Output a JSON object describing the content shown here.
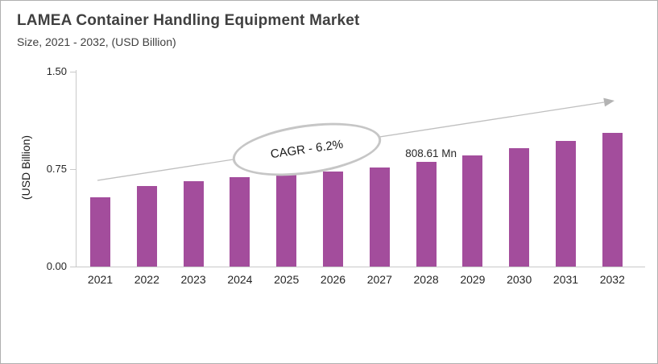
{
  "header": {
    "title": "LAMEA Container Handling Equipment Market",
    "subtitle": "Size, 2021 - 2032, (USD Billion)"
  },
  "chart_data": {
    "type": "bar",
    "title": "LAMEA Container Handling Equipment Market",
    "subtitle": "Size, 2021 - 2032, (USD Billion)",
    "categories": [
      "2021",
      "2022",
      "2023",
      "2024",
      "2025",
      "2026",
      "2027",
      "2028",
      "2029",
      "2030",
      "2031",
      "2032"
    ],
    "values": [
      0.53,
      0.62,
      0.66,
      0.69,
      0.71,
      0.73,
      0.765,
      0.80861,
      0.855,
      0.91,
      0.965,
      1.03
    ],
    "xlabel": "",
    "ylabel": "(USD Billion)",
    "ylim": [
      0,
      1.5
    ],
    "yticks": [
      {
        "label": "0.00",
        "value": 0
      },
      {
        "label": "0.75",
        "value": 0.75
      },
      {
        "label": "1.50",
        "value": 1.5
      }
    ],
    "grid": false,
    "legend": false,
    "bar_color": "#a34d9c",
    "trend_arrow": {
      "present": true,
      "color": "#bfbfbf"
    },
    "annotations": {
      "cagr_label": "CAGR - 6.2%",
      "peak_label": "808.61 Mn",
      "peak_year": "2028"
    }
  }
}
